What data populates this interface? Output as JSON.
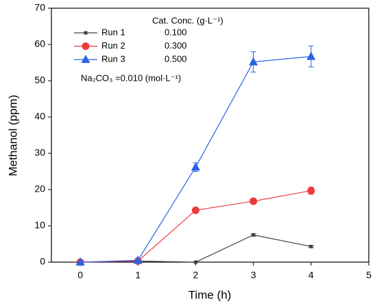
{
  "chart_data": {
    "type": "line",
    "x_label": "Time (h)",
    "y_label": "Methanol (ppm)",
    "x": [
      0,
      1,
      2,
      3,
      4
    ],
    "series": [
      {
        "name": "Run 1",
        "color": "#404040",
        "marker": "square",
        "concentration": "0.100",
        "values": [
          0,
          0.3,
          0,
          7.5,
          4.3
        ],
        "errors": [
          null,
          null,
          null,
          0.3,
          0.3
        ]
      },
      {
        "name": "Run 2",
        "color": "#ec3b3b",
        "marker": "circle",
        "concentration": "0.300",
        "values": [
          0,
          0.3,
          14.3,
          16.8,
          19.7
        ],
        "errors": [
          null,
          null,
          0.5,
          0.7,
          1.0
        ]
      },
      {
        "name": "Run 3",
        "color": "#2a62e6",
        "marker": "triangle",
        "concentration": "0.500",
        "values": [
          0,
          0.5,
          26.2,
          55.2,
          56.7
        ],
        "errors": [
          null,
          null,
          1.2,
          2.8,
          2.9
        ]
      }
    ],
    "legend_title": "Cat. Conc. (g·L⁻¹)",
    "annotation": "Na₂CO₃ =0.010 (mol·L⁻¹)",
    "xlim": [
      -0.5,
      5
    ],
    "xticks": [
      0,
      1,
      2,
      3,
      4,
      5
    ],
    "ylim": [
      0,
      70
    ],
    "yticks": [
      0,
      10,
      20,
      30,
      40,
      50,
      60,
      70
    ]
  }
}
